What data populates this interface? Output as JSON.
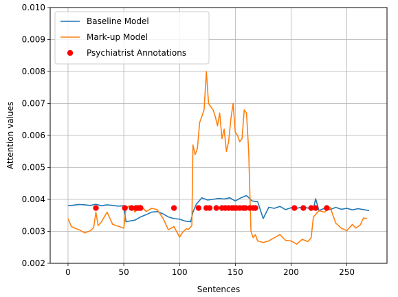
{
  "chart_data": {
    "type": "line",
    "xlabel": "Sentences",
    "ylabel": "Attention values",
    "xlim": [
      -16,
      286
    ],
    "ylim": [
      0.002,
      0.01
    ],
    "xticks": [
      0,
      50,
      100,
      150,
      200,
      250
    ],
    "yticks": [
      0.002,
      0.003,
      0.004,
      0.005,
      0.006,
      0.007,
      0.008,
      0.009,
      0.01
    ],
    "ytick_labels": [
      "0.002",
      "0.003",
      "0.004",
      "0.005",
      "0.006",
      "0.007",
      "0.008",
      "0.009",
      "0.010"
    ],
    "grid": true,
    "legend_position": "top-left",
    "series": [
      {
        "name": "Baseline Model",
        "kind": "line",
        "color": "#1f77b4",
        "x": [
          0,
          5,
          10,
          15,
          20,
          25,
          30,
          35,
          40,
          45,
          50,
          52,
          55,
          60,
          65,
          70,
          75,
          80,
          85,
          90,
          95,
          100,
          105,
          110,
          112,
          115,
          120,
          125,
          130,
          135,
          140,
          145,
          150,
          155,
          160,
          163,
          165,
          170,
          175,
          180,
          185,
          190,
          195,
          200,
          205,
          210,
          215,
          220,
          222,
          225,
          230,
          235,
          240,
          245,
          250,
          255,
          260,
          265,
          270
        ],
        "y": [
          0.0038,
          0.00382,
          0.00384,
          0.00383,
          0.00381,
          0.00385,
          0.0038,
          0.00383,
          0.00381,
          0.00379,
          0.0038,
          0.0033,
          0.00332,
          0.00335,
          0.00345,
          0.00352,
          0.0036,
          0.00362,
          0.00355,
          0.00345,
          0.0034,
          0.00338,
          0.00332,
          0.0033,
          0.0036,
          0.00385,
          0.00405,
          0.00398,
          0.004,
          0.00403,
          0.00401,
          0.00405,
          0.00395,
          0.00405,
          0.00412,
          0.00402,
          0.00395,
          0.00393,
          0.0034,
          0.00375,
          0.00372,
          0.00378,
          0.00368,
          0.00374,
          0.00372,
          0.00376,
          0.00373,
          0.0037,
          0.00402,
          0.00365,
          0.00372,
          0.00368,
          0.00375,
          0.00369,
          0.00372,
          0.00367,
          0.00371,
          0.00368,
          0.00365
        ]
      },
      {
        "name": "Mark-up Model",
        "kind": "line",
        "color": "#ff7f0e",
        "x": [
          0,
          3,
          6,
          10,
          15,
          20,
          23,
          25,
          27,
          30,
          35,
          40,
          45,
          50,
          52,
          55,
          58,
          60,
          65,
          70,
          75,
          80,
          85,
          90,
          95,
          100,
          103,
          106,
          108,
          111,
          112,
          114,
          116,
          118,
          120,
          122,
          124,
          126,
          128,
          130,
          132,
          134,
          136,
          138,
          140,
          142,
          144,
          146,
          148,
          150,
          152,
          154,
          156,
          158,
          160,
          162,
          164,
          166,
          168,
          170,
          175,
          180,
          185,
          190,
          195,
          200,
          205,
          210,
          215,
          218,
          220,
          225,
          230,
          235,
          240,
          245,
          250,
          255,
          258,
          262,
          265,
          268
        ],
        "y": [
          0.0034,
          0.00315,
          0.0031,
          0.00305,
          0.00295,
          0.00302,
          0.00312,
          0.0036,
          0.00318,
          0.0033,
          0.0036,
          0.00322,
          0.00316,
          0.0031,
          0.00372,
          0.0038,
          0.00375,
          0.0036,
          0.00382,
          0.00362,
          0.00372,
          0.00368,
          0.00342,
          0.00305,
          0.00315,
          0.00282,
          0.00298,
          0.00308,
          0.00306,
          0.00318,
          0.0057,
          0.0054,
          0.0056,
          0.0064,
          0.0066,
          0.0068,
          0.008,
          0.007,
          0.0069,
          0.0068,
          0.0066,
          0.0063,
          0.0067,
          0.0059,
          0.0062,
          0.0055,
          0.0058,
          0.0065,
          0.007,
          0.0061,
          0.006,
          0.0058,
          0.0059,
          0.0068,
          0.0067,
          0.0055,
          0.003,
          0.0028,
          0.0029,
          0.0027,
          0.00265,
          0.0027,
          0.0028,
          0.0029,
          0.00272,
          0.0027,
          0.0026,
          0.00275,
          0.00268,
          0.0028,
          0.00345,
          0.00365,
          0.0036,
          0.00375,
          0.00326,
          0.0031,
          0.00302,
          0.00322,
          0.0031,
          0.0032,
          0.00342,
          0.0034
        ]
      },
      {
        "name": "Psychiatrist Annotations",
        "kind": "scatter",
        "color": "#ff0000",
        "x": [
          25,
          51,
          57,
          61,
          63,
          65,
          95,
          117,
          124,
          127,
          133,
          138,
          141,
          144,
          147,
          149,
          151,
          154,
          157,
          159,
          163,
          166,
          168,
          203,
          211,
          218,
          222,
          232
        ],
        "y": [
          0.00373,
          0.00373,
          0.00373,
          0.00373,
          0.00373,
          0.00373,
          0.00373,
          0.00373,
          0.00373,
          0.00373,
          0.00373,
          0.00373,
          0.00373,
          0.00373,
          0.00373,
          0.00373,
          0.00373,
          0.00373,
          0.00373,
          0.00373,
          0.00373,
          0.00373,
          0.00373,
          0.00373,
          0.00373,
          0.00373,
          0.00373,
          0.00373
        ]
      }
    ]
  }
}
